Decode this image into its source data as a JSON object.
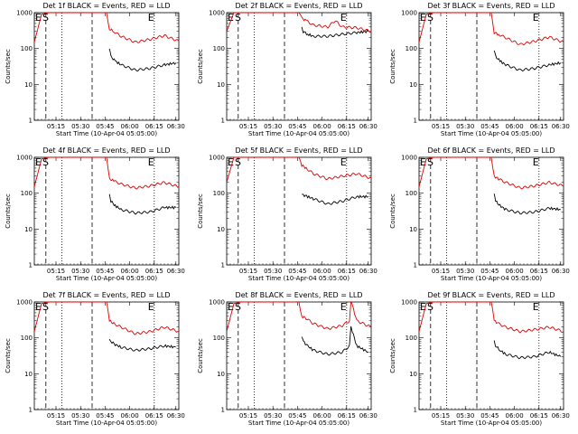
{
  "chart_data": [
    {
      "type": "line",
      "title": "Det 1f BLACK = Events, RED = LLD",
      "xlabel": "Start Time (10-Apr-04 05:05:00)",
      "ylabel": "Counts/sec",
      "yscale": "log",
      "ylim": [
        1,
        1000
      ],
      "x_tick_labels": [
        "05:15",
        "05:30",
        "05:45",
        "06:00",
        "06:15",
        "06:30"
      ],
      "y_tick_labels": [
        "1",
        "10",
        "100",
        "1000"
      ],
      "markers": [
        "E",
        "S",
        "E"
      ],
      "series": [
        {
          "color": "#000000",
          "x": [
            0.52,
            0.53,
            0.56,
            0.6,
            0.7,
            0.8,
            0.9,
            0.98
          ],
          "y": [
            95,
            60,
            45,
            35,
            25,
            28,
            35,
            40
          ]
        },
        {
          "color": "#dd0000",
          "x": [
            0.0,
            0.05,
            0.1,
            0.13,
            0.2,
            0.3,
            0.4,
            0.5,
            0.52,
            0.55,
            0.6,
            0.7,
            0.8,
            0.9,
            1.0
          ],
          "y": [
            150,
            900,
            1000,
            1000,
            1000,
            1000,
            1000,
            1000,
            350,
            300,
            220,
            150,
            180,
            230,
            160
          ]
        }
      ]
    },
    {
      "type": "line",
      "title": "Det 2f BLACK = Events, RED = LLD",
      "xlabel": "Start Time (10-Apr-04 05:05:00)",
      "ylabel": "Counts/sec",
      "yscale": "log",
      "ylim": [
        1,
        1000
      ],
      "x_tick_labels": [
        "05:15",
        "05:30",
        "05:45",
        "06:00",
        "06:15",
        "06:30"
      ],
      "y_tick_labels": [
        "1",
        "10",
        "100",
        "1000"
      ],
      "markers": [
        "E",
        "S",
        "E"
      ],
      "series": [
        {
          "color": "#000000",
          "x": [
            0.52,
            0.53,
            0.56,
            0.6,
            0.7,
            0.8,
            0.9,
            0.98
          ],
          "y": [
            400,
            300,
            250,
            220,
            220,
            250,
            280,
            300
          ]
        },
        {
          "color": "#dd0000",
          "x": [
            0.0,
            0.05,
            0.1,
            0.13,
            0.2,
            0.3,
            0.4,
            0.5,
            0.52,
            0.55,
            0.6,
            0.7,
            0.75,
            0.8,
            0.9,
            1.0
          ],
          "y": [
            300,
            1000,
            1000,
            1000,
            1000,
            1000,
            1000,
            1000,
            700,
            600,
            450,
            400,
            600,
            400,
            380,
            300
          ]
        }
      ]
    },
    {
      "type": "line",
      "title": "Det 3f BLACK = Events, RED = LLD",
      "xlabel": "Start Time (10-Apr-04 05:05:00)",
      "ylabel": "Counts/sec",
      "yscale": "log",
      "ylim": [
        1,
        1000
      ],
      "x_tick_labels": [
        "05:15",
        "05:30",
        "05:45",
        "06:00",
        "06:15",
        "06:30"
      ],
      "y_tick_labels": [
        "1",
        "10",
        "100",
        "1000"
      ],
      "markers": [
        "E",
        "S",
        "E"
      ],
      "series": [
        {
          "color": "#000000",
          "x": [
            0.52,
            0.53,
            0.56,
            0.6,
            0.7,
            0.8,
            0.9,
            0.98
          ],
          "y": [
            90,
            60,
            45,
            35,
            25,
            28,
            35,
            40
          ]
        },
        {
          "color": "#dd0000",
          "x": [
            0.0,
            0.05,
            0.1,
            0.13,
            0.2,
            0.3,
            0.4,
            0.5,
            0.52,
            0.55,
            0.6,
            0.7,
            0.8,
            0.9,
            1.0
          ],
          "y": [
            150,
            900,
            1000,
            1000,
            1000,
            1000,
            1000,
            1000,
            280,
            250,
            200,
            130,
            160,
            210,
            150
          ]
        }
      ]
    },
    {
      "type": "line",
      "title": "Det 4f BLACK = Events, RED = LLD",
      "xlabel": "Start Time (10-Apr-04 05:05:00)",
      "ylabel": "Counts/sec",
      "yscale": "log",
      "ylim": [
        1,
        1000
      ],
      "x_tick_labels": [
        "05:15",
        "05:30",
        "05:45",
        "06:00",
        "06:15",
        "06:30"
      ],
      "y_tick_labels": [
        "1",
        "10",
        "100",
        "1000"
      ],
      "markers": [
        "E",
        "S",
        "E"
      ],
      "series": [
        {
          "color": "#000000",
          "x": [
            0.52,
            0.53,
            0.56,
            0.6,
            0.7,
            0.8,
            0.9,
            0.98
          ],
          "y": [
            90,
            60,
            45,
            35,
            28,
            30,
            40,
            40
          ]
        },
        {
          "color": "#dd0000",
          "x": [
            0.0,
            0.05,
            0.1,
            0.13,
            0.2,
            0.3,
            0.4,
            0.5,
            0.52,
            0.55,
            0.6,
            0.7,
            0.8,
            0.9,
            1.0
          ],
          "y": [
            150,
            900,
            1000,
            1000,
            1000,
            1000,
            1000,
            1000,
            250,
            220,
            180,
            140,
            160,
            200,
            150
          ]
        }
      ]
    },
    {
      "type": "line",
      "title": "Det 5f BLACK = Events, RED = LLD",
      "xlabel": "Start Time (10-Apr-04 05:05:00)",
      "ylabel": "Counts/sec",
      "yscale": "log",
      "ylim": [
        1,
        1000
      ],
      "x_tick_labels": [
        "05:15",
        "05:30",
        "05:45",
        "06:00",
        "06:15",
        "06:30"
      ],
      "y_tick_labels": [
        "1",
        "10",
        "100",
        "1000"
      ],
      "markers": [
        "E",
        "S",
        "E"
      ],
      "series": [
        {
          "color": "#000000",
          "x": [
            0.52,
            0.53,
            0.56,
            0.6,
            0.7,
            0.8,
            0.9,
            0.98
          ],
          "y": [
            100,
            90,
            80,
            70,
            50,
            60,
            80,
            80
          ]
        },
        {
          "color": "#dd0000",
          "x": [
            0.0,
            0.05,
            0.1,
            0.13,
            0.2,
            0.3,
            0.4,
            0.5,
            0.52,
            0.55,
            0.6,
            0.7,
            0.8,
            0.9,
            1.0
          ],
          "y": [
            200,
            1000,
            1000,
            1000,
            1000,
            1000,
            1000,
            1000,
            600,
            500,
            350,
            250,
            300,
            350,
            260
          ]
        }
      ]
    },
    {
      "type": "line",
      "title": "Det 6f BLACK = Events, RED = LLD",
      "xlabel": "Start Time (10-Apr-04 05:05:00)",
      "ylabel": "Counts/sec",
      "yscale": "log",
      "ylim": [
        1,
        1000
      ],
      "x_tick_labels": [
        "05:15",
        "05:30",
        "05:45",
        "06:00",
        "06:15",
        "06:30"
      ],
      "y_tick_labels": [
        "1",
        "10",
        "100",
        "1000"
      ],
      "markers": [
        "E",
        "S",
        "E"
      ],
      "series": [
        {
          "color": "#000000",
          "x": [
            0.52,
            0.53,
            0.56,
            0.6,
            0.7,
            0.8,
            0.9,
            0.98
          ],
          "y": [
            90,
            60,
            45,
            35,
            28,
            30,
            38,
            35
          ]
        },
        {
          "color": "#dd0000",
          "x": [
            0.0,
            0.05,
            0.1,
            0.13,
            0.2,
            0.3,
            0.4,
            0.5,
            0.52,
            0.55,
            0.6,
            0.7,
            0.8,
            0.9,
            1.0
          ],
          "y": [
            150,
            900,
            1000,
            1000,
            1000,
            1000,
            1000,
            1000,
            300,
            250,
            200,
            140,
            160,
            200,
            160
          ]
        }
      ]
    },
    {
      "type": "line",
      "title": "Det 7f BLACK = Events, RED = LLD",
      "xlabel": "Start Time (10-Apr-04 05:05:00)",
      "ylabel": "Counts/sec",
      "yscale": "log",
      "ylim": [
        1,
        1000
      ],
      "x_tick_labels": [
        "05:15",
        "05:30",
        "05:45",
        "06:00",
        "06:15",
        "06:30"
      ],
      "y_tick_labels": [
        "1",
        "10",
        "100",
        "1000"
      ],
      "markers": [
        "E",
        "S",
        "E"
      ],
      "series": [
        {
          "color": "#000000",
          "x": [
            0.52,
            0.53,
            0.56,
            0.6,
            0.7,
            0.8,
            0.9,
            0.98
          ],
          "y": [
            100,
            80,
            65,
            55,
            45,
            50,
            60,
            55
          ]
        },
        {
          "color": "#dd0000",
          "x": [
            0.0,
            0.05,
            0.1,
            0.13,
            0.2,
            0.3,
            0.4,
            0.5,
            0.52,
            0.55,
            0.6,
            0.7,
            0.8,
            0.9,
            1.0
          ],
          "y": [
            150,
            900,
            1000,
            1000,
            1000,
            1000,
            1000,
            1000,
            300,
            250,
            200,
            130,
            150,
            200,
            150
          ]
        }
      ]
    },
    {
      "type": "line",
      "title": "Det 8f BLACK = Events, RED = LLD",
      "xlabel": "Start Time (10-Apr-04 05:05:00)",
      "ylabel": "Counts/sec",
      "yscale": "log",
      "ylim": [
        1,
        1000
      ],
      "x_tick_labels": [
        "05:15",
        "05:30",
        "05:45",
        "06:00",
        "06:15",
        "06:30"
      ],
      "y_tick_labels": [
        "1",
        "10",
        "100",
        "1000"
      ],
      "markers": [
        "E",
        "S",
        "E"
      ],
      "series": [
        {
          "color": "#000000",
          "x": [
            0.52,
            0.53,
            0.56,
            0.6,
            0.7,
            0.8,
            0.85,
            0.86,
            0.87,
            0.9,
            0.98
          ],
          "y": [
            100,
            80,
            60,
            45,
            35,
            40,
            60,
            200,
            150,
            60,
            40
          ]
        },
        {
          "color": "#dd0000",
          "x": [
            0.0,
            0.05,
            0.1,
            0.13,
            0.2,
            0.3,
            0.4,
            0.5,
            0.52,
            0.55,
            0.6,
            0.7,
            0.8,
            0.85,
            0.86,
            0.87,
            0.9,
            1.0
          ],
          "y": [
            150,
            900,
            1000,
            1000,
            1000,
            1000,
            1000,
            1000,
            400,
            350,
            250,
            180,
            220,
            300,
            1000,
            800,
            300,
            200
          ]
        }
      ]
    },
    {
      "type": "line",
      "title": "Det 9f BLACK = Events, RED = LLD",
      "xlabel": "Start Time (10-Apr-04 05:05:00)",
      "ylabel": "Counts/sec",
      "yscale": "log",
      "ylim": [
        1,
        1000
      ],
      "x_tick_labels": [
        "05:15",
        "05:30",
        "05:45",
        "06:00",
        "06:15",
        "06:30"
      ],
      "y_tick_labels": [
        "1",
        "10",
        "100",
        "1000"
      ],
      "markers": [
        "E",
        "S",
        "E"
      ],
      "series": [
        {
          "color": "#000000",
          "x": [
            0.52,
            0.53,
            0.56,
            0.6,
            0.7,
            0.8,
            0.9,
            0.98
          ],
          "y": [
            90,
            60,
            45,
            35,
            28,
            30,
            40,
            30
          ]
        },
        {
          "color": "#dd0000",
          "x": [
            0.0,
            0.05,
            0.1,
            0.13,
            0.2,
            0.3,
            0.4,
            0.5,
            0.52,
            0.55,
            0.6,
            0.7,
            0.8,
            0.9,
            1.0
          ],
          "y": [
            150,
            900,
            1000,
            1000,
            1000,
            1000,
            1000,
            1000,
            300,
            250,
            200,
            150,
            170,
            200,
            150
          ]
        }
      ]
    }
  ]
}
